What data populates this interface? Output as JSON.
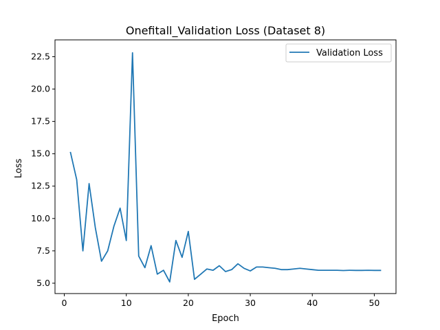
{
  "chart_data": {
    "type": "line",
    "title": "Onefitall_Validation Loss  (Dataset 8)",
    "xlabel": "Epoch",
    "ylabel": "Loss",
    "xlim": [
      -1.5,
      53.5
    ],
    "ylim": [
      4.2,
      23.8
    ],
    "xticks": [
      0,
      10,
      20,
      30,
      40,
      50
    ],
    "xtick_labels": [
      "0",
      "10",
      "20",
      "30",
      "40",
      "50"
    ],
    "yticks": [
      5.0,
      7.5,
      10.0,
      12.5,
      15.0,
      17.5,
      20.0,
      22.5
    ],
    "ytick_labels": [
      "5.0",
      "7.5",
      "10.0",
      "12.5",
      "15.0",
      "17.5",
      "20.0",
      "22.5"
    ],
    "grid": false,
    "legend_position": "top-right",
    "x": [
      1,
      2,
      3,
      4,
      5,
      6,
      7,
      8,
      9,
      10,
      11,
      12,
      13,
      14,
      15,
      16,
      17,
      18,
      19,
      20,
      21,
      22,
      23,
      24,
      25,
      26,
      27,
      28,
      29,
      30,
      31,
      32,
      33,
      34,
      35,
      36,
      37,
      38,
      39,
      40,
      41,
      42,
      43,
      44,
      45,
      46,
      47,
      48,
      49,
      50,
      51
    ],
    "series": [
      {
        "name": "Validation Loss",
        "color": "#1f77b4",
        "values": [
          15.1,
          13.0,
          7.5,
          12.7,
          9.3,
          6.7,
          7.5,
          9.4,
          10.8,
          8.3,
          22.8,
          7.1,
          6.2,
          7.9,
          5.7,
          6.0,
          5.1,
          8.3,
          7.0,
          9.0,
          5.3,
          5.7,
          6.1,
          6.0,
          6.35,
          5.9,
          6.05,
          6.5,
          6.15,
          5.95,
          6.25,
          6.25,
          6.2,
          6.15,
          6.05,
          6.05,
          6.1,
          6.15,
          6.1,
          6.05,
          6.0,
          6.0,
          6.0,
          6.0,
          5.98,
          6.0,
          5.99,
          5.99,
          6.0,
          5.99,
          5.99
        ]
      }
    ]
  }
}
